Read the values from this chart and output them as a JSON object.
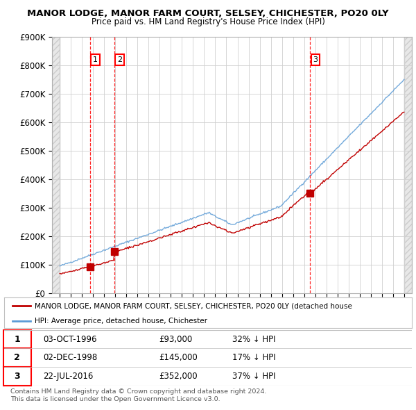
{
  "title_line1": "MANOR LODGE, MANOR FARM COURT, SELSEY, CHICHESTER, PO20 0LY",
  "title_line2": "Price paid vs. HM Land Registry's House Price Index (HPI)",
  "hpi_color": "#5b9bd5",
  "price_color": "#c00000",
  "marker_color": "#c00000",
  "ylim": [
    0,
    900000
  ],
  "yticks": [
    0,
    100000,
    200000,
    300000,
    400000,
    500000,
    600000,
    700000,
    800000,
    900000
  ],
  "ytick_labels": [
    "£0",
    "£100K",
    "£200K",
    "£300K",
    "£400K",
    "£500K",
    "£600K",
    "£700K",
    "£800K",
    "£900K"
  ],
  "transactions": [
    {
      "num": 1,
      "date_num": 1996.75,
      "price": 93000,
      "label": "03-OCT-1996",
      "price_str": "£93,000",
      "hpi_str": "32% ↓ HPI"
    },
    {
      "num": 2,
      "date_num": 1998.92,
      "price": 145000,
      "label": "02-DEC-1998",
      "price_str": "£145,000",
      "hpi_str": "17% ↓ HPI"
    },
    {
      "num": 3,
      "date_num": 2016.55,
      "price": 352000,
      "label": "22-JUL-2016",
      "price_str": "£352,000",
      "hpi_str": "37% ↓ HPI"
    }
  ],
  "legend_entry1": "MANOR LODGE, MANOR FARM COURT, SELSEY, CHICHESTER, PO20 0LY (detached house",
  "legend_entry2": "HPI: Average price, detached house, Chichester",
  "footer1": "Contains HM Land Registry data © Crown copyright and database right 2024.",
  "footer2": "This data is licensed under the Open Government Licence v3.0."
}
